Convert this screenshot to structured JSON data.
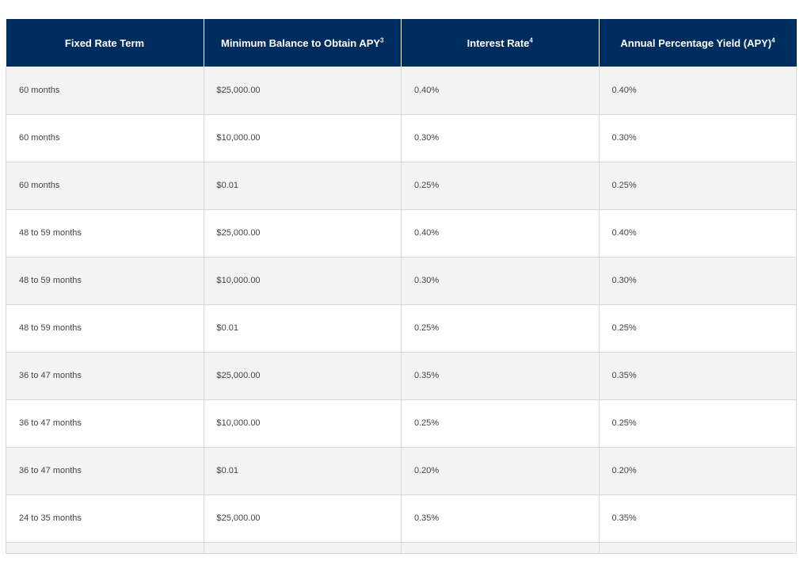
{
  "table": {
    "header": [
      {
        "label": "Fixed Rate Term",
        "sup": ""
      },
      {
        "label": "Minimum Balance to Obtain APY",
        "sup": "3"
      },
      {
        "label": "Interest Rate",
        "sup": "4"
      },
      {
        "label": "Annual Percentage Yield (APY)",
        "sup": "4"
      }
    ],
    "rows": [
      [
        "60 months",
        "$25,000.00",
        "0.40%",
        "0.40%"
      ],
      [
        "60 months",
        "$10,000.00",
        "0.30%",
        "0.30%"
      ],
      [
        "60 months",
        "$0.01",
        "0.25%",
        "0.25%"
      ],
      [
        "48 to 59 months",
        "$25,000.00",
        "0.40%",
        "0.40%"
      ],
      [
        "48 to 59 months",
        "$10,000.00",
        "0.30%",
        "0.30%"
      ],
      [
        "48 to 59 months",
        "$0.01",
        "0.25%",
        "0.25%"
      ],
      [
        "36 to 47 months",
        "$25,000.00",
        "0.35%",
        "0.35%"
      ],
      [
        "36 to 47 months",
        "$10,000.00",
        "0.25%",
        "0.25%"
      ],
      [
        "36 to 47 months",
        "$0.01",
        "0.20%",
        "0.20%"
      ],
      [
        "24 to 35 months",
        "$25,000.00",
        "0.35%",
        "0.35%"
      ]
    ]
  },
  "colors": {
    "header_bg": "#002d5f",
    "header_text": "#ffffff",
    "row_alt_bg": "#f3f3f3",
    "border": "#d8d8d8"
  }
}
